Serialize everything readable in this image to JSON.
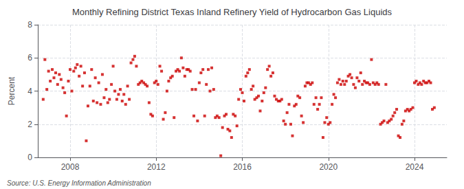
{
  "chart_data": {
    "type": "scatter",
    "title": "Monthly Refining District Texas Inland Refinery Yield of Hydrocarbon Gas Liquids",
    "ylabel": "Percent",
    "annotations": [
      "Source: U.S. Energy Information Administration"
    ],
    "color": "#cc0000",
    "marker": "square",
    "grid": true,
    "xlim": [
      2006.5,
      2025.5
    ],
    "xticks": [
      2008,
      2012,
      2016,
      2020,
      2024
    ],
    "ylim": [
      0,
      8
    ],
    "yticks": [
      0,
      2,
      4,
      6,
      8
    ],
    "x": [
      2006.75,
      2006.83,
      2006.92,
      2007.0,
      2007.08,
      2007.17,
      2007.25,
      2007.33,
      2007.42,
      2007.5,
      2007.58,
      2007.67,
      2007.75,
      2007.83,
      2007.92,
      2008.0,
      2008.08,
      2008.17,
      2008.25,
      2008.33,
      2008.42,
      2008.5,
      2008.58,
      2008.67,
      2008.75,
      2008.83,
      2008.92,
      2009.0,
      2009.08,
      2009.17,
      2009.25,
      2009.33,
      2009.42,
      2009.5,
      2009.58,
      2009.67,
      2009.75,
      2009.83,
      2009.92,
      2010.0,
      2010.08,
      2010.17,
      2010.25,
      2010.33,
      2010.42,
      2010.5,
      2010.58,
      2010.67,
      2010.75,
      2010.83,
      2010.92,
      2011.0,
      2011.08,
      2011.17,
      2011.25,
      2011.33,
      2011.42,
      2011.5,
      2011.58,
      2011.67,
      2011.75,
      2011.83,
      2011.92,
      2012.0,
      2012.08,
      2012.17,
      2012.25,
      2012.33,
      2012.42,
      2012.5,
      2012.58,
      2012.67,
      2012.75,
      2012.83,
      2012.92,
      2013.0,
      2013.08,
      2013.17,
      2013.25,
      2013.33,
      2013.42,
      2013.5,
      2013.58,
      2013.67,
      2013.75,
      2013.83,
      2013.92,
      2014.0,
      2014.08,
      2014.17,
      2014.25,
      2014.33,
      2014.42,
      2014.5,
      2014.58,
      2014.67,
      2014.75,
      2014.83,
      2014.92,
      2015.0,
      2015.08,
      2015.17,
      2015.25,
      2015.33,
      2015.42,
      2015.5,
      2015.58,
      2015.67,
      2015.75,
      2015.83,
      2015.92,
      2016.0,
      2016.08,
      2016.17,
      2016.25,
      2016.33,
      2016.42,
      2016.5,
      2016.58,
      2016.67,
      2016.75,
      2016.83,
      2016.92,
      2017.0,
      2017.08,
      2017.17,
      2017.25,
      2017.33,
      2017.42,
      2017.5,
      2017.58,
      2017.67,
      2017.75,
      2017.83,
      2017.92,
      2018.0,
      2018.08,
      2018.17,
      2018.25,
      2018.33,
      2018.42,
      2018.5,
      2018.58,
      2018.67,
      2018.75,
      2018.83,
      2018.92,
      2019.0,
      2019.08,
      2019.17,
      2019.25,
      2019.33,
      2019.42,
      2019.5,
      2019.58,
      2019.67,
      2019.75,
      2019.83,
      2019.92,
      2020.0,
      2020.08,
      2020.17,
      2020.25,
      2020.33,
      2020.42,
      2020.5,
      2020.58,
      2020.67,
      2020.75,
      2020.83,
      2020.92,
      2021.0,
      2021.08,
      2021.17,
      2021.25,
      2021.33,
      2021.42,
      2021.5,
      2021.58,
      2021.67,
      2021.75,
      2021.83,
      2021.92,
      2022.0,
      2022.08,
      2022.17,
      2022.25,
      2022.33,
      2022.42,
      2022.5,
      2022.58,
      2022.67,
      2022.75,
      2022.83,
      2022.92,
      2023.0,
      2023.08,
      2023.17,
      2023.25,
      2023.33,
      2023.42,
      2023.5,
      2023.58,
      2023.67,
      2023.75,
      2023.83,
      2023.92,
      2024.0,
      2024.08,
      2024.17,
      2024.25,
      2024.33,
      2024.42,
      2024.5,
      2024.58,
      2024.67,
      2024.75,
      2024.83,
      2024.92
    ],
    "values": [
      3.5,
      5.9,
      4.1,
      5.2,
      4.6,
      5.3,
      4.8,
      5.1,
      4.4,
      5.0,
      4.7,
      4.2,
      3.9,
      2.5,
      4.6,
      5.3,
      4.0,
      5.2,
      5.4,
      5.6,
      4.9,
      5.5,
      4.3,
      5.1,
      1.0,
      3.1,
      4.3,
      5.3,
      3.4,
      4.8,
      3.3,
      4.5,
      3.2,
      5.0,
      3.6,
      4.1,
      3.3,
      3.5,
      4.4,
      5.5,
      4.0,
      3.5,
      3.8,
      4.1,
      3.4,
      3.8,
      3.2,
      4.3,
      3.5,
      5.7,
      5.9,
      6.1,
      5.5,
      4.4,
      4.5,
      4.6,
      4.5,
      4.4,
      4.3,
      3.3,
      2.6,
      2.5,
      4.5,
      4.6,
      4.4,
      5.5,
      5.2,
      2.3,
      2.7,
      4.0,
      4.6,
      4.8,
      4.9,
      2.4,
      5.2,
      5.3,
      5.2,
      6.0,
      5.4,
      4.9,
      5.3,
      5.3,
      5.2,
      4.1,
      2.5,
      4.1,
      2.2,
      4.5,
      5.1,
      5.3,
      2.5,
      4.4,
      5.3,
      4.0,
      5.4,
      4.1,
      2.4,
      2.5,
      2.4,
      0.1,
      1.8,
      2.5,
      2.6,
      1.7,
      1.6,
      1.2,
      2.6,
      2.5,
      1.9,
      3.5,
      4.1,
      3.9,
      3.4,
      4.9,
      5.1,
      5.3,
      4.1,
      4.3,
      3.5,
      3.6,
      3.7,
      2.8,
      3.4,
      3.9,
      4.2,
      5.3,
      5.5,
      4.9,
      5.1,
      3.7,
      3.5,
      3.4,
      3.4,
      3.5,
      2.2,
      2.0,
      2.7,
      3.2,
      2.0,
      1.3,
      3.1,
      3.2,
      3.7,
      3.6,
      2.5,
      2.1,
      4.3,
      4.5,
      4.5,
      4.4,
      4.5,
      3.2,
      3.6,
      2.9,
      3.2,
      3.6,
      1.2,
      2.1,
      2.4,
      2.0,
      2.1,
      3.2,
      3.8,
      3.6,
      4.5,
      4.7,
      4.4,
      4.6,
      4.4,
      4.6,
      4.9,
      5.0,
      4.8,
      4.4,
      4.2,
      4.8,
      4.6,
      5.1,
      4.4,
      4.6,
      4.5,
      4.5,
      4.4,
      5.9,
      4.5,
      4.4,
      4.5,
      4.4,
      2.0,
      2.1,
      2.2,
      4.4,
      2.1,
      2.2,
      2.3,
      2.5,
      2.7,
      2.9,
      1.3,
      1.2,
      2.0,
      2.2,
      2.8,
      2.9,
      2.8,
      2.9,
      3.0,
      4.5,
      4.6,
      4.4,
      4.5,
      4.4,
      4.6,
      4.5,
      4.5,
      4.6,
      4.5,
      2.9,
      3.0
    ]
  }
}
